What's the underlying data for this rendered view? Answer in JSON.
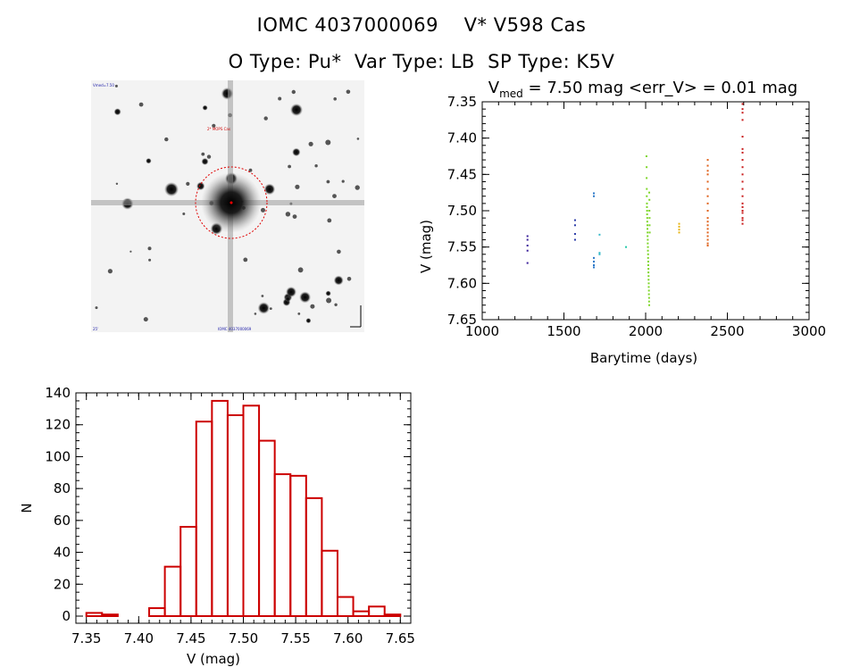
{
  "header": {
    "title_line1": "IOMC 4037000069    V* V598 Cas",
    "title_line2": "O Type: Pu*  Var Type: LB  SP Type: K5V"
  },
  "stamp": {
    "label_top": "Vmed=7.50",
    "label_mid": "2* MOPS Cas",
    "label_bottom_left": "25'",
    "label_bottom_mid": "IOMC 4037000069"
  },
  "chart_data": [
    {
      "type": "scatter",
      "title_parts": {
        "prefix": "V",
        "sub": "med",
        "rest": " = 7.50 mag <err_V> = 0.01 mag"
      },
      "xlabel": "Barytime (days)",
      "ylabel": "V (mag)",
      "xlim": [
        1000,
        3000
      ],
      "ylim": [
        7.65,
        7.35
      ],
      "y_inverted": true,
      "xticks": [
        "1000",
        "1500",
        "2000",
        "2500",
        "3000"
      ],
      "yticks": [
        "7.35",
        "7.40",
        "7.45",
        "7.50",
        "7.55",
        "7.60",
        "7.65"
      ],
      "grid": false,
      "series": [
        {
          "color": "#3a1f9a",
          "x": [
            1277,
            1277,
            1277,
            1277,
            1277
          ],
          "y": [
            7.535,
            7.54,
            7.548,
            7.555,
            7.572
          ]
        },
        {
          "color": "#2a3aa8",
          "x": [
            1568,
            1568,
            1568,
            1568
          ],
          "y": [
            7.513,
            7.52,
            7.532,
            7.54
          ]
        },
        {
          "color": "#2b78c8",
          "x": [
            1683,
            1683,
            1683,
            1683,
            1683,
            1683
          ],
          "y": [
            7.476,
            7.48,
            7.565,
            7.57,
            7.575,
            7.578
          ]
        },
        {
          "color": "#35b9c9",
          "x": [
            1718,
            1718,
            1718
          ],
          "y": [
            7.533,
            7.558,
            7.56
          ]
        },
        {
          "color": "#22c9a8",
          "x": [
            1880
          ],
          "y": [
            7.55
          ]
        },
        {
          "color": "#7ed62a",
          "x": [
            2005,
            2006,
            2006,
            2007,
            2007,
            2008,
            2008,
            2009,
            2009,
            2010,
            2010,
            2011,
            2011,
            2012,
            2012,
            2013,
            2013,
            2014,
            2014,
            2015,
            2015,
            2016,
            2016,
            2017,
            2017,
            2018,
            2018,
            2019,
            2019,
            2020,
            2020,
            2021,
            2021,
            2022,
            2022,
            2023,
            2023,
            2024,
            2024,
            2025
          ],
          "y": [
            7.425,
            7.44,
            7.455,
            7.47,
            7.48,
            7.49,
            7.495,
            7.5,
            7.505,
            7.51,
            7.515,
            7.52,
            7.525,
            7.53,
            7.535,
            7.54,
            7.545,
            7.55,
            7.555,
            7.56,
            7.565,
            7.57,
            7.575,
            7.58,
            7.585,
            7.59,
            7.595,
            7.6,
            7.605,
            7.61,
            7.615,
            7.62,
            7.625,
            7.63,
            7.475,
            7.485,
            7.5,
            7.51,
            7.52,
            7.53
          ]
        },
        {
          "color": "#e7b413",
          "x": [
            2205,
            2205,
            2205,
            2205
          ],
          "y": [
            7.518,
            7.522,
            7.526,
            7.53
          ]
        },
        {
          "color": "#e0621c",
          "x": [
            2380,
            2380,
            2380,
            2380,
            2380,
            2380,
            2380,
            2380,
            2380,
            2380,
            2380,
            2380,
            2380,
            2380,
            2380,
            2380,
            2380,
            2380
          ],
          "y": [
            7.43,
            7.438,
            7.445,
            7.45,
            7.46,
            7.47,
            7.48,
            7.49,
            7.5,
            7.51,
            7.515,
            7.52,
            7.525,
            7.53,
            7.535,
            7.54,
            7.545,
            7.548
          ]
        },
        {
          "color": "#c91d1d",
          "x": [
            2593,
            2593,
            2593,
            2593,
            2593,
            2593,
            2593,
            2593,
            2593,
            2593,
            2593,
            2593,
            2593,
            2593,
            2593,
            2593,
            2593,
            2593,
            2593,
            2593
          ],
          "y": [
            7.353,
            7.36,
            7.365,
            7.375,
            7.398,
            7.415,
            7.42,
            7.43,
            7.44,
            7.45,
            7.46,
            7.47,
            7.48,
            7.49,
            7.495,
            7.5,
            7.503,
            7.51,
            7.513,
            7.518
          ]
        }
      ]
    },
    {
      "type": "bar",
      "xlabel": "V (mag)",
      "ylabel": "N",
      "xlim": [
        7.34,
        7.66
      ],
      "ylim": [
        0,
        140
      ],
      "xticks": [
        "7.35",
        "7.40",
        "7.45",
        "7.50",
        "7.55",
        "7.60",
        "7.65"
      ],
      "yticks": [
        "0",
        "20",
        "40",
        "60",
        "80",
        "100",
        "120",
        "140"
      ],
      "bar_color": "#cc0000",
      "bin_width": 0.015,
      "bin_starts": [
        7.35,
        7.365,
        7.38,
        7.395,
        7.41,
        7.425,
        7.44,
        7.455,
        7.47,
        7.485,
        7.5,
        7.515,
        7.53,
        7.545,
        7.56,
        7.575,
        7.59,
        7.605,
        7.62,
        7.635
      ],
      "values": [
        2,
        1,
        0,
        0,
        5,
        31,
        56,
        122,
        135,
        126,
        132,
        110,
        89,
        88,
        74,
        41,
        12,
        3,
        6,
        1
      ]
    }
  ]
}
